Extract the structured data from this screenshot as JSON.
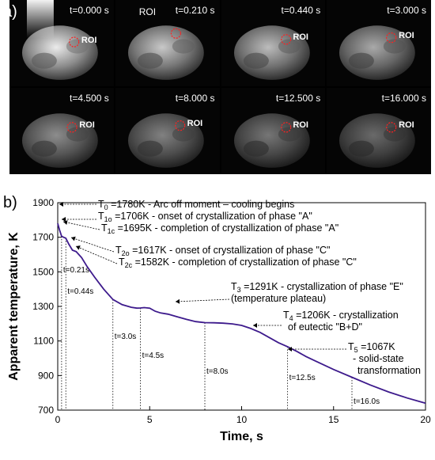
{
  "panel_a": {
    "label": "a)",
    "roi_label": "ROI",
    "frames": [
      {
        "time": "t=0.000 s",
        "roi": "ROI",
        "brightness": 1.0,
        "arc": true,
        "roi_inside": true
      },
      {
        "time": "t=0.210 s",
        "roi": "ROI",
        "brightness": 0.85,
        "arc": false,
        "roi_inside": false
      },
      {
        "time": "t=0.440 s",
        "roi": "ROI",
        "brightness": 0.8,
        "arc": false,
        "roi_inside": true
      },
      {
        "time": "t=3.000 s",
        "roi": "ROI",
        "brightness": 0.72,
        "arc": false,
        "roi_inside": true
      },
      {
        "time": "t=4.500 s",
        "roi": "ROI",
        "brightness": 0.6,
        "arc": false,
        "roi_inside": true
      },
      {
        "time": "t=8.000 s",
        "roi": "ROI",
        "brightness": 0.55,
        "arc": false,
        "roi_inside": true
      },
      {
        "time": "t=12.500 s",
        "roi": "ROI",
        "brightness": 0.5,
        "arc": false,
        "roi_inside": true
      },
      {
        "time": "t=16.000 s",
        "roi": "ROI",
        "brightness": 0.45,
        "arc": false,
        "roi_inside": true
      }
    ]
  },
  "chart_data": {
    "label": "b)",
    "type": "line",
    "xlabel": "Time, s",
    "ylabel": "Apparent temperature, K",
    "xlim": [
      0,
      20
    ],
    "ylim": [
      700,
      1900
    ],
    "xticks": [
      0,
      5,
      10,
      15,
      20
    ],
    "yticks": [
      700,
      900,
      1100,
      1300,
      1500,
      1700,
      1900
    ],
    "line_color": "#3d1a8c",
    "series": [
      {
        "x": [
          0,
          0.1,
          0.21,
          0.32,
          0.44,
          0.6,
          0.8,
          1.0,
          1.3,
          1.6,
          2.0,
          2.5,
          3.0,
          3.5,
          4.0,
          4.3,
          4.5,
          4.7,
          5.0,
          5.3,
          5.6,
          6.0,
          6.5,
          7.0,
          7.5,
          8.0,
          8.5,
          9.0,
          9.5,
          10.0,
          10.5,
          11.0,
          11.5,
          12.0,
          12.5,
          13.0,
          13.5,
          14.0,
          15.0,
          16.0,
          17.0,
          18.0,
          19.0,
          20.0
        ],
        "y": [
          1780,
          1742,
          1706,
          1700,
          1695,
          1660,
          1625,
          1617,
          1582,
          1530,
          1470,
          1400,
          1340,
          1310,
          1295,
          1290,
          1291,
          1293,
          1290,
          1272,
          1262,
          1255,
          1240,
          1225,
          1212,
          1206,
          1205,
          1203,
          1199,
          1190,
          1172,
          1150,
          1120,
          1090,
          1067,
          1040,
          1010,
          985,
          935,
          890,
          845,
          805,
          770,
          740
        ]
      }
    ],
    "annotations": [
      {
        "sym": "T",
        "sub": "0",
        "text": " =1780K - Arc off moment – cooling begins"
      },
      {
        "sym": "T",
        "sub": "1o",
        "text": " =1706K - onset of crystallization of phase \"A\""
      },
      {
        "sym": "T",
        "sub": "1c",
        "text": " =1695K - completion of crystallization of phase \"A\""
      },
      {
        "sym": "T",
        "sub": "2o",
        "text": " =1617K - onset of crystallization of phase \"C\""
      },
      {
        "sym": "T",
        "sub": "2c",
        "text": " =1582K - completion of crystallization of phase \"C\""
      },
      {
        "sym": "T",
        "sub": "3",
        "text": " =1291K - crystallization of phase \"E\"",
        "line2": "(temperature plateau)"
      },
      {
        "sym": "T",
        "sub": "4",
        "text": " =1206K - crystallization",
        "line2": "of eutectic \"B+D\""
      },
      {
        "sym": "T",
        "sub": "5",
        "text": " =1067K",
        "line2": "- solid-state",
        "line3": "transformation"
      }
    ],
    "time_markers": [
      {
        "x": 0.21,
        "label": "t=0.21s"
      },
      {
        "x": 0.44,
        "label": "t=0.44s"
      },
      {
        "x": 3.0,
        "label": "t=3.0s"
      },
      {
        "x": 4.5,
        "label": "t=4.5s"
      },
      {
        "x": 8.0,
        "label": "t=8.0s"
      },
      {
        "x": 12.5,
        "label": "t=12.5s"
      },
      {
        "x": 16.0,
        "label": "t=16.0s"
      }
    ]
  }
}
